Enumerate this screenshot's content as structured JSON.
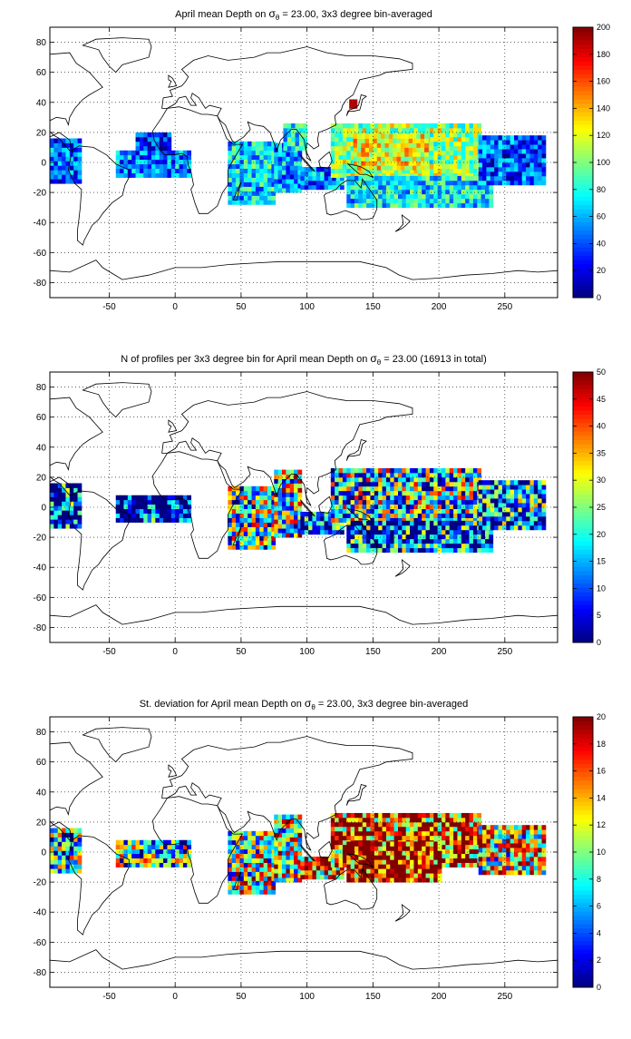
{
  "figure": {
    "panels": [
      {
        "title_pre": "April mean Depth on ",
        "title_sym": "σ",
        "title_sub": "θ",
        "title_post": " = 23.00, 3x3 degree bin-averaged",
        "colorbar_ticks": [
          "200",
          "180",
          "160",
          "140",
          "120",
          "100",
          "80",
          "60",
          "40",
          "20",
          "0"
        ]
      },
      {
        "title_pre": "N of profiles per 3x3 degree bin for April mean Depth on ",
        "title_sym": "σ",
        "title_sub": "θ",
        "title_post": " = 23.00 (16913 in total)",
        "colorbar_ticks": [
          "50",
          "45",
          "40",
          "35",
          "30",
          "25",
          "20",
          "15",
          "10",
          "5",
          "0"
        ]
      },
      {
        "title_pre": "St. deviation for April mean Depth on ",
        "title_sym": "σ",
        "title_sub": "θ",
        "title_post": " = 23.00, 3x3 degree bin-averaged",
        "colorbar_ticks": [
          "20",
          "18",
          "16",
          "14",
          "12",
          "10",
          "8",
          "6",
          "4",
          "2",
          "0"
        ]
      }
    ]
  },
  "chart_data": [
    {
      "type": "heatmap",
      "title": "April mean Depth on σθ = 23.00, 3x3 degree bin-averaged",
      "x_ticks": [
        "-50",
        "0",
        "50",
        "100",
        "150",
        "200",
        "250"
      ],
      "y_ticks": [
        "80",
        "60",
        "40",
        "20",
        "0",
        "-20",
        "-40",
        "-60",
        "-80"
      ],
      "xlim": [
        -95,
        290
      ],
      "ylim": [
        -90,
        90
      ],
      "clim": [
        0,
        200
      ],
      "colormap": "jet",
      "grid": true,
      "bin_size_deg": 3,
      "regions": [
        {
          "lon": [
            -95,
            -72
          ],
          "lat": [
            -14,
            14
          ],
          "value": 45
        },
        {
          "lon": [
            -45,
            10
          ],
          "lat": [
            -10,
            8
          ],
          "value": 50
        },
        {
          "lon": [
            -30,
            -5
          ],
          "lat": [
            8,
            18
          ],
          "value": 30
        },
        {
          "lon": [
            40,
            75
          ],
          "lat": [
            -28,
            12
          ],
          "value": 70
        },
        {
          "lon": [
            75,
            95
          ],
          "lat": [
            -20,
            12
          ],
          "value": 55
        },
        {
          "lon": [
            95,
            128
          ],
          "lat": [
            -18,
            -5
          ],
          "value": 50
        },
        {
          "lon": [
            82,
            100
          ],
          "lat": [
            8,
            24
          ],
          "value": 75
        },
        {
          "lon": [
            118,
            230
          ],
          "lat": [
            -10,
            25
          ],
          "value": 105
        },
        {
          "lon": [
            135,
            190
          ],
          "lat": [
            -5,
            18
          ],
          "value": 125
        },
        {
          "lon": [
            130,
            240
          ],
          "lat": [
            -30,
            -10
          ],
          "value": 70
        },
        {
          "lon": [
            230,
            280
          ],
          "lat": [
            -15,
            18
          ],
          "value": 40
        },
        {
          "lon": [
            132,
            138
          ],
          "lat": [
            36,
            42
          ],
          "value": 190
        }
      ]
    },
    {
      "type": "heatmap",
      "title": "N of profiles per 3x3 degree bin for April mean Depth on σθ = 23.00 (16913 in total)",
      "x_ticks": [
        "-50",
        "0",
        "50",
        "100",
        "150",
        "200",
        "250"
      ],
      "y_ticks": [
        "80",
        "60",
        "40",
        "20",
        "0",
        "-20",
        "-40",
        "-60",
        "-80"
      ],
      "xlim": [
        -95,
        290
      ],
      "ylim": [
        -90,
        90
      ],
      "clim": [
        0,
        50
      ],
      "colormap": "jet",
      "grid": true,
      "bin_size_deg": 3,
      "total_profiles": 16913,
      "regions": [
        {
          "lon": [
            -95,
            -72
          ],
          "lat": [
            -14,
            14
          ],
          "value": 8
        },
        {
          "lon": [
            -45,
            10
          ],
          "lat": [
            -10,
            8
          ],
          "value": 4
        },
        {
          "lon": [
            40,
            75
          ],
          "lat": [
            -28,
            12
          ],
          "value": 22
        },
        {
          "lon": [
            75,
            95
          ],
          "lat": [
            -20,
            24
          ],
          "value": 25
        },
        {
          "lon": [
            95,
            128
          ],
          "lat": [
            -18,
            -5
          ],
          "value": 10
        },
        {
          "lon": [
            118,
            230
          ],
          "lat": [
            -10,
            25
          ],
          "value": 20
        },
        {
          "lon": [
            130,
            240
          ],
          "lat": [
            -30,
            -10
          ],
          "value": 10
        },
        {
          "lon": [
            230,
            280
          ],
          "lat": [
            -15,
            18
          ],
          "value": 12
        }
      ]
    },
    {
      "type": "heatmap",
      "title": "St. deviation for April mean Depth on σθ = 23.00, 3x3 degree bin-averaged",
      "x_ticks": [
        "-50",
        "0",
        "50",
        "100",
        "150",
        "200",
        "250"
      ],
      "y_ticks": [
        "80",
        "60",
        "40",
        "20",
        "0",
        "-20",
        "-40",
        "-60",
        "-80"
      ],
      "xlim": [
        -95,
        290
      ],
      "ylim": [
        -90,
        90
      ],
      "clim": [
        0,
        20
      ],
      "colormap": "jet",
      "grid": true,
      "bin_size_deg": 3,
      "regions": [
        {
          "lon": [
            -95,
            -72
          ],
          "lat": [
            -14,
            14
          ],
          "value": 8
        },
        {
          "lon": [
            -45,
            10
          ],
          "lat": [
            -10,
            8
          ],
          "value": 7
        },
        {
          "lon": [
            40,
            75
          ],
          "lat": [
            -28,
            12
          ],
          "value": 11
        },
        {
          "lon": [
            75,
            95
          ],
          "lat": [
            -20,
            24
          ],
          "value": 12
        },
        {
          "lon": [
            95,
            128
          ],
          "lat": [
            -18,
            -5
          ],
          "value": 15
        },
        {
          "lon": [
            118,
            230
          ],
          "lat": [
            -10,
            25
          ],
          "value": 17
        },
        {
          "lon": [
            130,
            200
          ],
          "lat": [
            -20,
            5
          ],
          "value": 19
        },
        {
          "lon": [
            230,
            280
          ],
          "lat": [
            -15,
            18
          ],
          "value": 12
        }
      ]
    }
  ]
}
